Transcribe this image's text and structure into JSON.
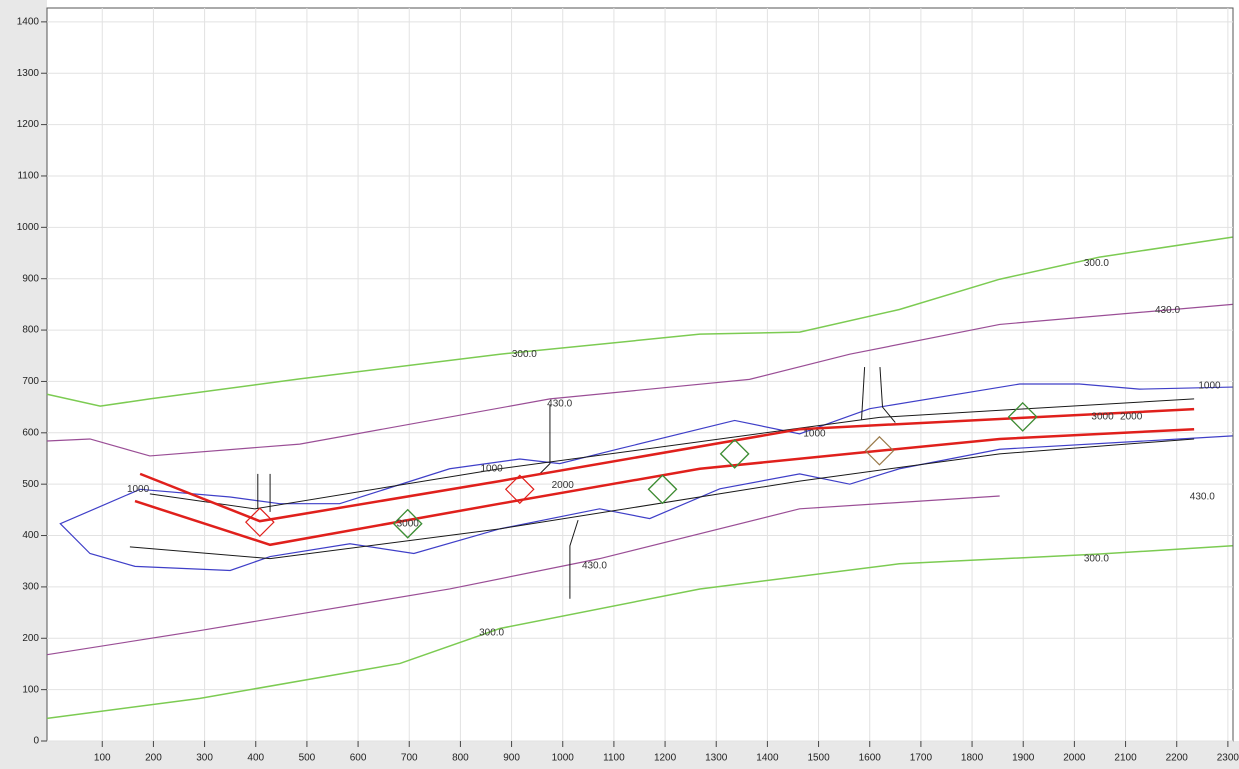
{
  "chart_data": {
    "type": "contour",
    "xlim": [
      -8,
      2310
    ],
    "ylim": [
      0,
      1427
    ],
    "xticks": [
      100,
      200,
      300,
      400,
      500,
      600,
      700,
      800,
      900,
      1000,
      1100,
      1200,
      1300,
      1400,
      1500,
      1600,
      1700,
      1800,
      1900,
      2000,
      2100,
      2200,
      2300
    ],
    "yticks": [
      0,
      100,
      200,
      300,
      400,
      500,
      600,
      700,
      800,
      900,
      1000,
      1100,
      1200,
      1300,
      1400
    ],
    "grid": true,
    "lines": [
      {
        "color": "#7ccb52",
        "width": 1.5,
        "x": [
          -8,
          96,
          193,
          486,
          877,
          1268,
          1463,
          1658,
          1854,
          2049,
          2309
        ],
        "y": [
          675,
          652,
          666,
          705,
          753,
          792,
          796,
          840,
          899,
          942,
          981
        ]
      },
      {
        "color": "#7ccb52",
        "width": 1.5,
        "x": [
          -8,
          291,
          682,
          877,
          1268,
          1658,
          2049,
          2309
        ],
        "y": [
          44,
          83,
          151,
          219,
          296,
          345,
          364,
          380
        ]
      },
      {
        "color": "#9a4e96",
        "width": 1.2,
        "x": [
          -8,
          76,
          193,
          486,
          975,
          1365,
          1561,
          1854,
          2309
        ],
        "y": [
          584,
          588,
          555,
          578,
          666,
          704,
          753,
          811,
          850
        ]
      },
      {
        "color": "#9a4e96",
        "width": 1.2,
        "x": [
          -8,
          291,
          779,
          1072,
          1463,
          1854,
          2309
        ],
        "y": [
          168,
          215,
          296,
          355,
          452,
          477
        ]
      },
      {
        "color": "#3f3fc8",
        "width": 1.2,
        "x": [
          174,
          350,
          447,
          564,
          779,
          916,
          994,
          1111,
          1336,
          1463,
          1600,
          1893,
          2010,
          2127,
          2309
        ],
        "y": [
          490,
          475,
          462,
          462,
          530,
          549,
          540,
          569,
          624,
          598,
          647,
          695,
          695,
          685,
          689
        ]
      },
      {
        "color": "#3f3fc8",
        "width": 1.2,
        "x": [
          174,
          18,
          76,
          164,
          350,
          428,
          584,
          709,
          877,
          1072,
          1170,
          1307,
          1463,
          1561,
          1658,
          1854,
          2205,
          2309
        ],
        "y": [
          490,
          423,
          365,
          340,
          332,
          359,
          384,
          365,
          413,
          452,
          433,
          491,
          520,
          500,
          530,
          568,
          588,
          594
        ]
      },
      {
        "color": "#1a1a1a",
        "width": 1,
        "x": [
          193,
          398,
          877,
          1619,
          2234
        ],
        "y": [
          481,
          452,
          530,
          630,
          666
        ]
      },
      {
        "color": "#1a1a1a",
        "width": 1,
        "x": [
          154,
          428,
          877,
          1463,
          1854,
          2234
        ],
        "y": [
          378,
          355,
          413,
          506,
          559,
          588
        ]
      },
      {
        "color": "#1a1a1a",
        "width": 1,
        "x": [
          404,
          404
        ],
        "y": [
          520,
          452
        ]
      },
      {
        "color": "#1a1a1a",
        "width": 1,
        "x": [
          428,
          428
        ],
        "y": [
          520,
          446
        ]
      },
      {
        "color": "#1a1a1a",
        "width": 1,
        "x": [
          975,
          975,
          955
        ],
        "y": [
          655,
          540,
          520
        ]
      },
      {
        "color": "#1a1a1a",
        "width": 1,
        "x": [
          1014,
          1014,
          1030
        ],
        "y": [
          277,
          380,
          430
        ]
      },
      {
        "color": "#1a1a1a",
        "width": 1,
        "x": [
          1590,
          1584
        ],
        "y": [
          728,
          626
        ]
      },
      {
        "color": "#1a1a1a",
        "width": 1,
        "x": [
          1620,
          1625,
          1650
        ],
        "y": [
          728,
          650,
          620
        ]
      },
      {
        "color": "#e0201c",
        "width": 2.5,
        "x": [
          174,
          408,
          877,
          1463,
          1658,
          2234
        ],
        "y": [
          520,
          428,
          506,
          607,
          617,
          646
        ]
      },
      {
        "color": "#e0201c",
        "width": 2.5,
        "x": [
          164,
          428,
          877,
          1268,
          1619,
          1854,
          2234
        ],
        "y": [
          467,
          382,
          462,
          530,
          565,
          588,
          607
        ]
      }
    ],
    "markers": [
      {
        "color": "#e0201c",
        "x": [
          408,
          697,
          916,
          1195,
          1336,
          1899
        ],
        "y": [
          426,
          423,
          490,
          490,
          559,
          631
        ]
      },
      {
        "color": "#2e9a3a",
        "x": [
          697,
          1195,
          1336,
          1899
        ],
        "y": [
          423,
          490,
          559,
          631
        ]
      },
      {
        "color": "#9a7a4a",
        "x": [
          1619
        ],
        "y": [
          565
        ]
      }
    ],
    "annotations": [
      {
        "text": "300.0",
        "x": 925,
        "y": 753
      },
      {
        "text": "300.0",
        "x": 2043,
        "y": 930
      },
      {
        "text": "300.0",
        "x": 2043,
        "y": 355
      },
      {
        "text": "300.0",
        "x": 861,
        "y": 211
      },
      {
        "text": "430.0",
        "x": 994,
        "y": 656
      },
      {
        "text": "430.0",
        "x": 2182,
        "y": 838
      },
      {
        "text": "430.0",
        "x": 2250,
        "y": 475
      },
      {
        "text": "430.0",
        "x": 1062,
        "y": 341
      },
      {
        "text": "1000",
        "x": 170,
        "y": 490
      },
      {
        "text": "1000",
        "x": 861,
        "y": 530
      },
      {
        "text": "1000",
        "x": 1492,
        "y": 598
      },
      {
        "text": "1000",
        "x": 2264,
        "y": 691
      },
      {
        "text": "2000",
        "x": 1000,
        "y": 498
      },
      {
        "text": "2000",
        "x": 2111,
        "y": 631
      },
      {
        "text": "3000",
        "x": 697,
        "y": 423
      },
      {
        "text": "3000",
        "x": 2055,
        "y": 631
      }
    ]
  }
}
